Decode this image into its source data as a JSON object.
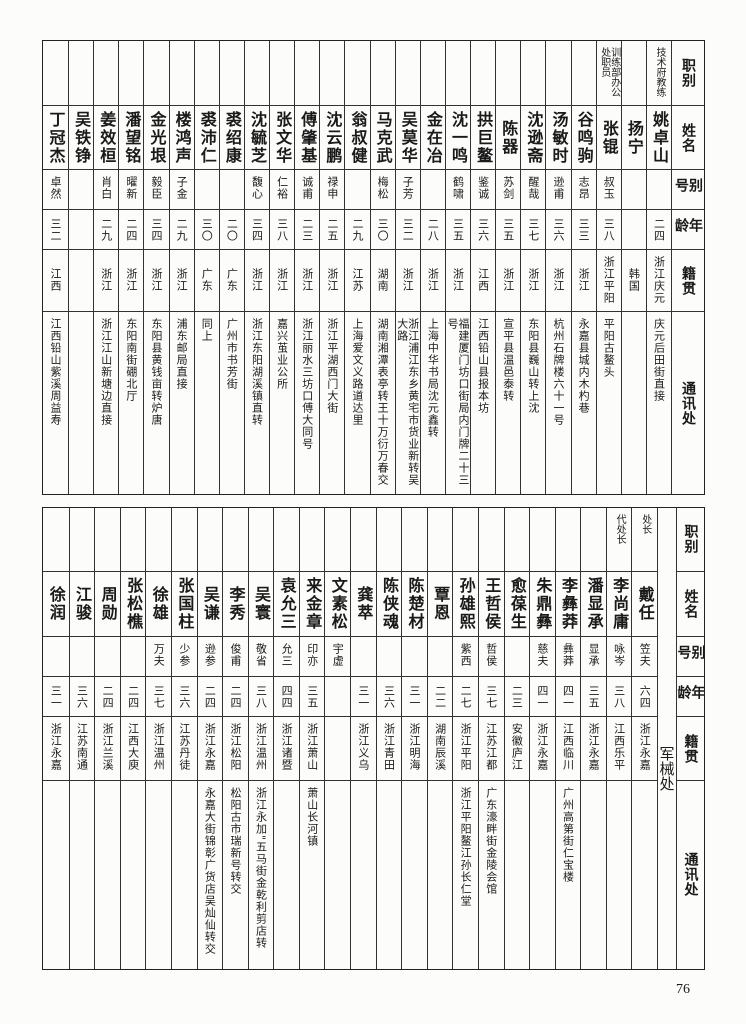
{
  "headers": [
    "职别",
    "姓名",
    "别号",
    "年龄",
    "籍贯",
    "通讯处"
  ],
  "top_table": {
    "rows": [
      {
        "role": "技术府教练",
        "name": "姚卓山",
        "alias": "",
        "age": "二四",
        "origin": "浙江庆元",
        "address": "庆元后田街直接"
      },
      {
        "role": "",
        "name": "扬宁",
        "alias": "",
        "age": "",
        "origin": "韩国",
        "address": ""
      },
      {
        "role": "训练部办公处职员",
        "name": "张锟",
        "alias": "叔玉",
        "age": "三八",
        "origin": "浙江平阳",
        "address": "平阳古鳌头"
      },
      {
        "role": "",
        "name": "谷鸣驹",
        "alias": "志昂",
        "age": "三三",
        "origin": "浙江",
        "address": "永嘉县城内木杓巷"
      },
      {
        "role": "",
        "name": "汤敏时",
        "alias": "逊甫",
        "age": "三六",
        "origin": "浙江",
        "address": "杭州石牌楼六十一号"
      },
      {
        "role": "",
        "name": "沈逊斋",
        "alias": "醒哉",
        "age": "三七",
        "origin": "浙江",
        "address": "东阳县巍山转上沈"
      },
      {
        "role": "",
        "name": "陈器",
        "alias": "苏剑",
        "age": "三五",
        "origin": "浙江",
        "address": "宣平县温邑泰转"
      },
      {
        "role": "",
        "name": "拱巨鳌",
        "alias": "鉴诚",
        "age": "三六",
        "origin": "江西",
        "address": "江西铅山县报本坊"
      },
      {
        "role": "",
        "name": "沈一鸣",
        "alias": "鹤啸",
        "age": "三五",
        "origin": "浙江",
        "address": "福建厦门坊口街局内门牌二十三号"
      },
      {
        "role": "",
        "name": "金在冶",
        "alias": "",
        "age": "二八",
        "origin": "浙江",
        "address": "上海中华书局沈元鑫转"
      },
      {
        "role": "",
        "name": "吴莫华",
        "alias": "子芳",
        "age": "三二",
        "origin": "浙江",
        "address": "浙江浦江东乡黄宅市货业新转吴大路"
      },
      {
        "role": "",
        "name": "马克武",
        "alias": "梅松",
        "age": "三〇",
        "origin": "湖南",
        "address": "湖南湘潭表亭转王十万衍万春交"
      },
      {
        "role": "",
        "name": "翁叔健",
        "alias": "",
        "age": "二九",
        "origin": "江苏",
        "address": "上海爱文义路道达里"
      },
      {
        "role": "",
        "name": "沈云鹏",
        "alias": "禄申",
        "age": "二五",
        "origin": "浙江",
        "address": "浙江平湖西门大街"
      },
      {
        "role": "",
        "name": "傅肇基",
        "alias": "诚甫",
        "age": "二三",
        "origin": "浙江",
        "address": "浙江丽水三坊口傅大同号"
      },
      {
        "role": "",
        "name": "张文华",
        "alias": "仁裕",
        "age": "三八",
        "origin": "浙江",
        "address": "嘉兴茧业公所"
      },
      {
        "role": "",
        "name": "沈毓芝",
        "alias": "馥心",
        "age": "三四",
        "origin": "浙江",
        "address": "浙江东阳湖溪镇直转"
      },
      {
        "role": "",
        "name": "裘绍康",
        "alias": "",
        "age": "二〇",
        "origin": "广东",
        "address": "广州市书芳街"
      },
      {
        "role": "",
        "name": "裘沛仁",
        "alias": "",
        "age": "三〇",
        "origin": "广东",
        "address": "同上"
      },
      {
        "role": "",
        "name": "楼鸿声",
        "alias": "子金",
        "age": "二九",
        "origin": "浙江",
        "address": "浦东邮局直接"
      },
      {
        "role": "",
        "name": "金光垠",
        "alias": "毅臣",
        "age": "三四",
        "origin": "浙江",
        "address": "东阳县黄钱亩转炉唐"
      },
      {
        "role": "",
        "name": "潘望铭",
        "alias": "曜新",
        "age": "二四",
        "origin": "浙江",
        "address": "东阳南街硼北厅"
      },
      {
        "role": "",
        "name": "姜效桓",
        "alias": "肖白",
        "age": "二九",
        "origin": "浙江",
        "address": "浙江江山新塘边直接"
      },
      {
        "role": "",
        "name": "吴铁铮",
        "alias": "",
        "age": "",
        "origin": "",
        "address": ""
      },
      {
        "role": "",
        "name": "丁冠杰",
        "alias": "卓然",
        "age": "三二",
        "origin": "江西",
        "address": "江西铅山紫溪周益寿"
      }
    ]
  },
  "bottom_table": {
    "department": "军械处",
    "rows": [
      {
        "role": "处长",
        "name": "戴任",
        "alias": "笠夫",
        "age": "六四",
        "origin": "浙江永嘉",
        "address": ""
      },
      {
        "role": "代处长",
        "name": "李尚庸",
        "alias": "咏岑",
        "age": "三八",
        "origin": "江西乐平",
        "address": ""
      },
      {
        "role": "",
        "name": "潘显承",
        "alias": "显承",
        "age": "三五",
        "origin": "浙江永嘉",
        "address": ""
      },
      {
        "role": "",
        "name": "李彝莽",
        "alias": "彝莽",
        "age": "四一",
        "origin": "江西临川",
        "address": "广州高第街仁宝楼"
      },
      {
        "role": "",
        "name": "朱鼎彝",
        "alias": "慈夫",
        "age": "四一",
        "origin": "浙江永嘉",
        "address": ""
      },
      {
        "role": "",
        "name": "愈葆生",
        "alias": "",
        "age": "二三",
        "origin": "安徽庐江",
        "address": ""
      },
      {
        "role": "",
        "name": "王哲侯",
        "alias": "哲侯",
        "age": "三七",
        "origin": "江苏江都",
        "address": "广东濠畔街金陵会馆"
      },
      {
        "role": "",
        "name": "孙雄熙",
        "alias": "紫西",
        "age": "二七",
        "origin": "浙江平阳",
        "address": "浙江平阳鳌江孙长仁堂"
      },
      {
        "role": "",
        "name": "覃恩",
        "alias": "",
        "age": "二二",
        "origin": "湖南辰溪",
        "address": ""
      },
      {
        "role": "",
        "name": "陈楚材",
        "alias": "",
        "age": "三一",
        "origin": "浙江明海",
        "address": ""
      },
      {
        "role": "",
        "name": "陈侠魂",
        "alias": "",
        "age": "三六",
        "origin": "浙江青田",
        "address": ""
      },
      {
        "role": "",
        "name": "龚萃",
        "alias": "",
        "age": "三一",
        "origin": "浙江义乌",
        "address": ""
      },
      {
        "role": "",
        "name": "文素松",
        "alias": "宇虚",
        "age": "",
        "origin": "",
        "address": ""
      },
      {
        "role": "",
        "name": "来金章",
        "alias": "印亦",
        "age": "三五",
        "origin": "浙江萧山",
        "address": "萧山长河镇"
      },
      {
        "role": "",
        "name": "袁允三",
        "alias": "允三",
        "age": "四四",
        "origin": "浙江诸暨",
        "address": ""
      },
      {
        "role": "",
        "name": "吴寰",
        "alias": "敬省",
        "age": "三八",
        "origin": "浙江温州",
        "address": "浙江永加\"五马街金乾利剪店转"
      },
      {
        "role": "",
        "name": "李秀",
        "alias": "俊甫",
        "age": "二四",
        "origin": "浙江松阳",
        "address": "松阳古市瑞新号转交"
      },
      {
        "role": "",
        "name": "吴谦",
        "alias": "逊参",
        "age": "二四",
        "origin": "浙江永嘉",
        "address": "永嘉大街锦彰广货店吴灿仙转交"
      },
      {
        "role": "",
        "name": "张国柱",
        "alias": "少参",
        "age": "三六",
        "origin": "江苏丹徒",
        "address": ""
      },
      {
        "role": "",
        "name": "徐雄",
        "alias": "万夫",
        "age": "三七",
        "origin": "浙江温州",
        "address": ""
      },
      {
        "role": "",
        "name": "张松樵",
        "alias": "",
        "age": "二四",
        "origin": "江西大庾",
        "address": ""
      },
      {
        "role": "",
        "name": "周勋",
        "alias": "",
        "age": "二四",
        "origin": "浙江兰溪",
        "address": ""
      },
      {
        "role": "",
        "name": "江骏",
        "alias": "",
        "age": "三六",
        "origin": "江苏南通",
        "address": ""
      },
      {
        "role": "",
        "name": "徐润",
        "alias": "",
        "age": "三一",
        "origin": "浙江永嘉",
        "address": ""
      }
    ]
  },
  "page_number": "76"
}
